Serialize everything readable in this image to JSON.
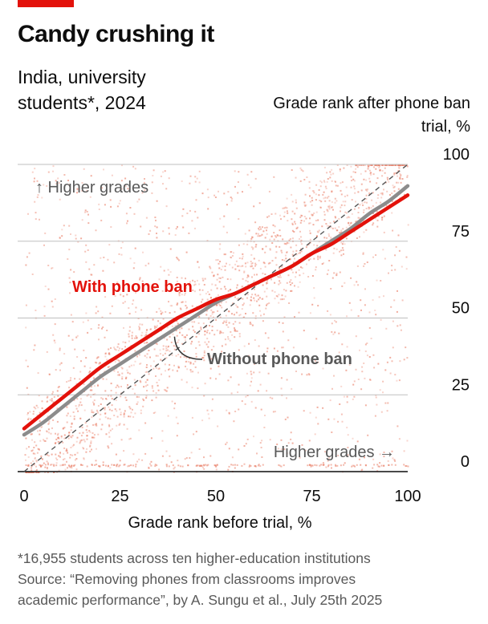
{
  "title": "Candy crushing it",
  "subtitle": "India, university students*, 2024",
  "footnote_lines": [
    "*16,955 students across ten higher-education institutions",
    "Source: “Removing phones from classrooms improves",
    "academic performance”, by A. Sungu et al., July 25th 2025"
  ],
  "colors": {
    "accent": "#e3120b",
    "grey": "#8c8c8c",
    "scatter": "#e8735a"
  },
  "chart_data": {
    "type": "line",
    "xlabel": "Grade rank before trial, %",
    "ylabel": "Grade rank after phone ban trial, %",
    "xlim": [
      0,
      100
    ],
    "ylim": [
      0,
      100
    ],
    "x_ticks": [
      0,
      25,
      50,
      75,
      100
    ],
    "y_ticks": [
      0,
      25,
      50,
      75,
      100
    ],
    "grid": "horizontal",
    "annotations": {
      "y_higher": "↑ Higher grades",
      "x_higher": "Higher grades →"
    },
    "reference_line": "diagonal",
    "series": [
      {
        "name": "With phone ban",
        "color": "#e3120b",
        "x": [
          0,
          5,
          10,
          15,
          20,
          25,
          30,
          35,
          40,
          45,
          50,
          55,
          60,
          65,
          70,
          75,
          80,
          85,
          90,
          95,
          100
        ],
        "y": [
          14,
          19,
          24,
          29,
          34,
          38,
          42,
          46,
          50,
          53,
          56,
          58,
          61,
          64,
          67,
          71,
          74,
          78,
          82,
          86,
          90
        ]
      },
      {
        "name": "Without phone ban",
        "color": "#8c8c8c",
        "x": [
          0,
          5,
          10,
          15,
          20,
          25,
          30,
          35,
          40,
          45,
          50,
          55,
          60,
          65,
          70,
          75,
          80,
          85,
          90,
          95,
          100
        ],
        "y": [
          12,
          16,
          21,
          26,
          31,
          35,
          39,
          43,
          47,
          51,
          55,
          58,
          61,
          64,
          67,
          71,
          75,
          79,
          84,
          88,
          93
        ]
      }
    ]
  }
}
